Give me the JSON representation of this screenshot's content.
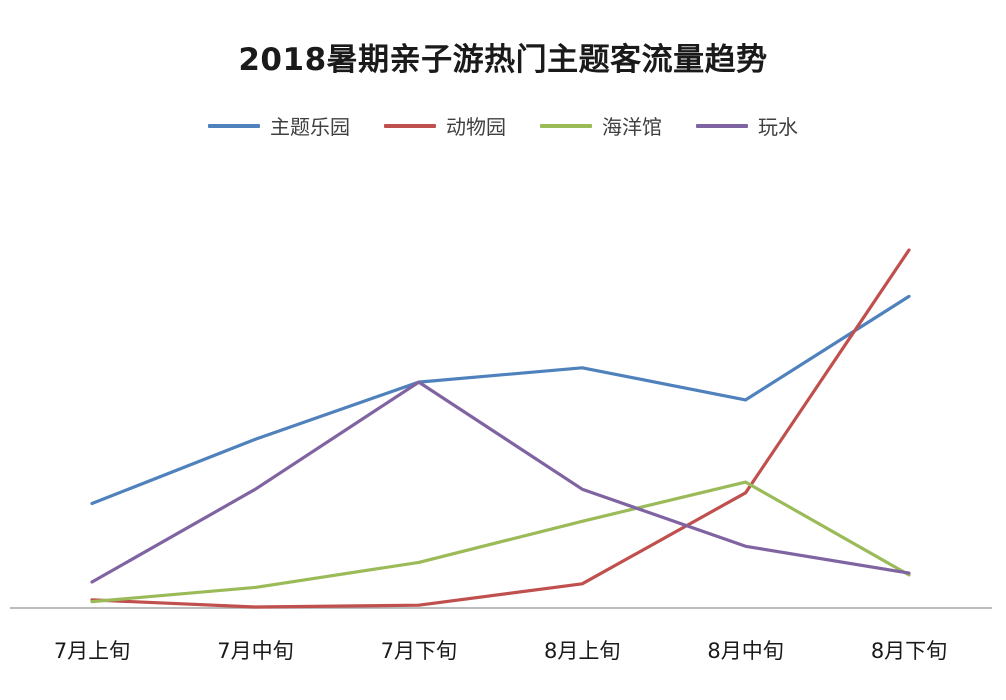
{
  "chart_data": {
    "type": "line",
    "title": "2018暑期亲子游热门主题客流量趋势",
    "xlabel": "",
    "ylabel": "",
    "categories": [
      "7月上旬",
      "7月中旬",
      "7月下旬",
      "8月上旬",
      "8月中旬",
      "8月下旬"
    ],
    "ylim": [
      0,
      100
    ],
    "grid": false,
    "legend_position": "top",
    "series": [
      {
        "name": "主题乐园",
        "color": "#4f81bd",
        "values": [
          29,
          47,
          63,
          67,
          58,
          87
        ]
      },
      {
        "name": "动物园",
        "color": "#c0504d",
        "values": [
          2,
          0,
          0.5,
          6.5,
          32,
          100
        ]
      },
      {
        "name": "海洋馆",
        "color": "#9bbb59",
        "values": [
          1.5,
          5.5,
          12.5,
          24,
          35,
          9
        ]
      },
      {
        "name": "玩水",
        "color": "#8064a2",
        "values": [
          7,
          33,
          63,
          33,
          17,
          9.5
        ]
      }
    ]
  }
}
